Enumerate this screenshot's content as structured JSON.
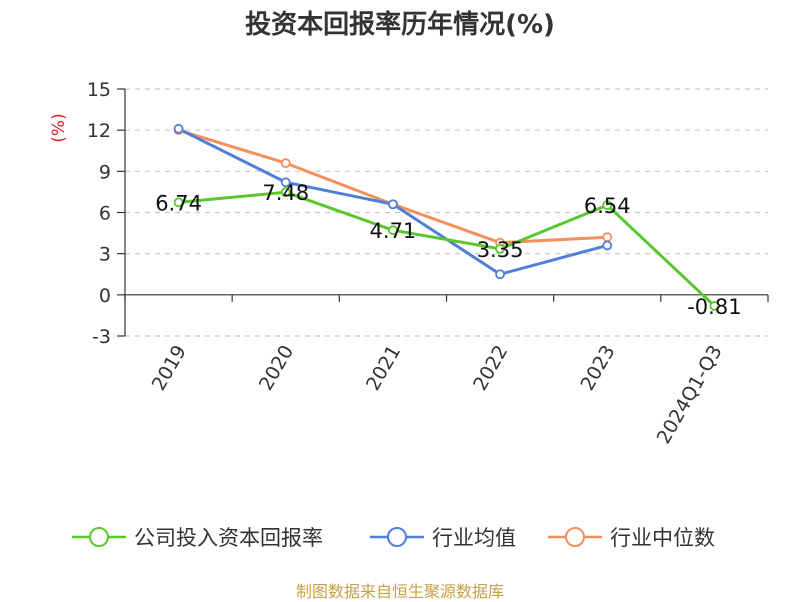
{
  "chart_data": {
    "type": "line",
    "title": "投资本回报率历年情况(%)",
    "ylabel": "(%)",
    "categories": [
      "2019",
      "2020",
      "2021",
      "2022",
      "2023",
      "2024Q1-Q3"
    ],
    "yticks": [
      15,
      12,
      9,
      6,
      3,
      0,
      -3
    ],
    "ylim": [
      -3,
      15
    ],
    "grid": true,
    "legend_position": "bottom",
    "series": [
      {
        "name": "公司投入资本回报率",
        "color": "#5ac72f",
        "values": [
          6.74,
          7.48,
          4.71,
          3.35,
          6.54,
          -0.81
        ],
        "labels": [
          "6.74",
          "7.48",
          "4.71",
          "3.35",
          "6.54",
          "-0.81"
        ]
      },
      {
        "name": "行业均值",
        "color": "#4f7fd8",
        "values": [
          12.1,
          8.2,
          6.6,
          1.5,
          3.6,
          null
        ]
      },
      {
        "name": "行业中位数",
        "color": "#f48f5c",
        "values": [
          12.0,
          9.6,
          6.6,
          3.8,
          4.2,
          null
        ]
      }
    ]
  },
  "footer": {
    "source": "制图数据来自恒生聚源数据库"
  }
}
